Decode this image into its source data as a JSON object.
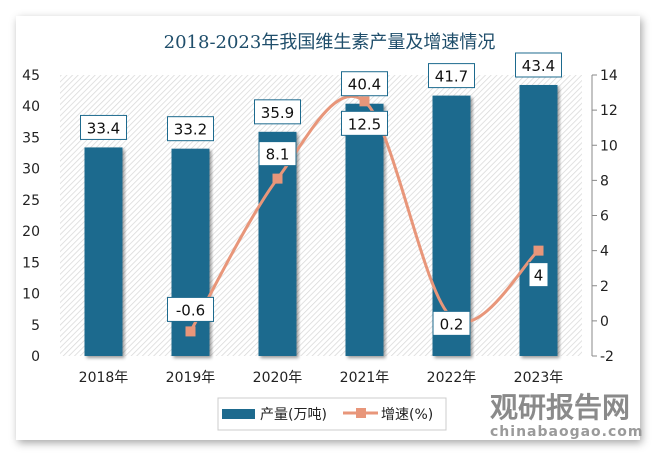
{
  "chart_data": {
    "type": "bar+line",
    "title": "2018-2023年我国维生素产量及增速情况",
    "categories": [
      "2018年",
      "2019年",
      "2020年",
      "2021年",
      "2022年",
      "2023年"
    ],
    "series": [
      {
        "name": "产量(万吨)",
        "type": "bar",
        "axis": "left",
        "values": [
          33.4,
          33.2,
          35.9,
          40.4,
          41.7,
          43.4
        ],
        "color": "#1d6a8e"
      },
      {
        "name": "增速(%)",
        "type": "line",
        "axis": "right",
        "values": [
          null,
          -0.6,
          8.1,
          12.5,
          0.2,
          4
        ],
        "color": "#e8967a"
      }
    ],
    "left_axis": {
      "min": 0,
      "max": 45,
      "step": 5
    },
    "right_axis": {
      "min": -2,
      "max": 14,
      "step": 2
    },
    "legend": "bottom",
    "grid": false
  },
  "watermark": {
    "cn": "观研报告网",
    "en": "chinabaogao.com"
  }
}
